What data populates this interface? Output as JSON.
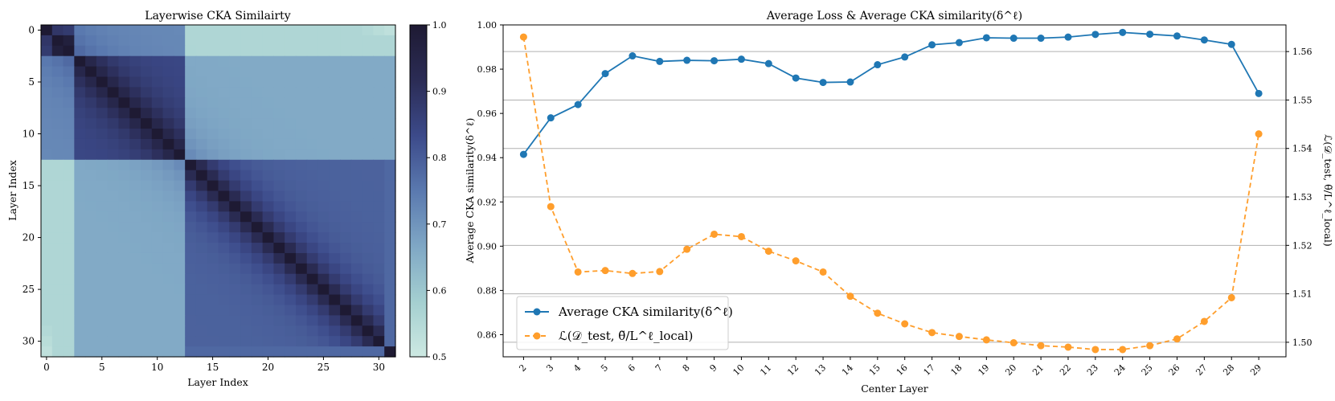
{
  "chart_data": [
    {
      "type": "heatmap",
      "title": "Layerwise CKA Similairty",
      "xlabel": "Layer Index",
      "ylabel": "Layer Index",
      "n": 32,
      "x_ticks": [
        "0",
        "5",
        "10",
        "15",
        "20",
        "25",
        "30"
      ],
      "y_ticks": [
        "0",
        "5",
        "10",
        "15",
        "20",
        "25",
        "30"
      ],
      "colorbar": {
        "range": [
          0.5,
          1.0
        ],
        "ticks": [
          "0.5",
          "0.6",
          "0.7",
          "0.8",
          "0.9",
          "1.0"
        ],
        "colors": [
          "#cde9e2",
          "#a4cfd0",
          "#7fa7c5",
          "#5a79af",
          "#3c4a8a",
          "#2b2c55",
          "#1e1a33"
        ]
      }
    },
    {
      "type": "line",
      "title": "Average Loss & Average CKA similarity(δ^ℓ)",
      "xlabel": "Center Layer",
      "ylabel_left": "Average CKA similarity(δ^ℓ)",
      "ylabel_right": "ℒ(𝒟_test, θ̃/L^ℓ_local)",
      "x": [
        2,
        3,
        4,
        5,
        6,
        7,
        8,
        9,
        10,
        11,
        12,
        13,
        14,
        15,
        16,
        17,
        18,
        19,
        20,
        21,
        22,
        23,
        24,
        25,
        26,
        27,
        28,
        29
      ],
      "x_ticks": [
        "2",
        "3",
        "4",
        "5",
        "6",
        "7",
        "8",
        "9",
        "10",
        "11",
        "12",
        "13",
        "14",
        "15",
        "16",
        "17",
        "18",
        "19",
        "20",
        "21",
        "22",
        "23",
        "24",
        "25",
        "26",
        "27",
        "28",
        "29"
      ],
      "ylim_left": [
        0.85,
        1.0
      ],
      "y_ticks_left": [
        "0.86",
        "0.88",
        "0.90",
        "0.92",
        "0.94",
        "0.96",
        "0.98",
        "1.00"
      ],
      "ylim_right": [
        1.497,
        1.5655
      ],
      "y_ticks_right": [
        "1.50",
        "1.51",
        "1.52",
        "1.53",
        "1.54",
        "1.55",
        "1.56"
      ],
      "series": [
        {
          "name": "Average CKA similarity(δ^ℓ)",
          "axis": "left",
          "color": "#1f77b4",
          "values": [
            0.9415,
            0.958,
            0.964,
            0.978,
            0.986,
            0.9835,
            0.984,
            0.9838,
            0.9845,
            0.9825,
            0.976,
            0.974,
            0.9742,
            0.982,
            0.9855,
            0.991,
            0.992,
            0.9942,
            0.994,
            0.994,
            0.9945,
            0.9957,
            0.9966,
            0.9958,
            0.995,
            0.9932,
            0.9912,
            0.969
          ]
        },
        {
          "name": "ℒ(𝒟_test, θ̃/L^ℓ_local)",
          "axis": "right",
          "color": "#ff9e2c",
          "values": [
            1.563,
            1.528,
            1.5145,
            1.5148,
            1.5142,
            1.5146,
            1.5192,
            1.5223,
            1.5218,
            1.5188,
            1.5168,
            1.5145,
            1.5095,
            1.506,
            1.5038,
            1.502,
            1.5012,
            1.5005,
            1.4999,
            1.4993,
            1.499,
            1.4985,
            1.4985,
            1.4993,
            1.5007,
            1.5043,
            1.5092,
            1.543
          ]
        }
      ],
      "legend": "lower-left"
    }
  ]
}
